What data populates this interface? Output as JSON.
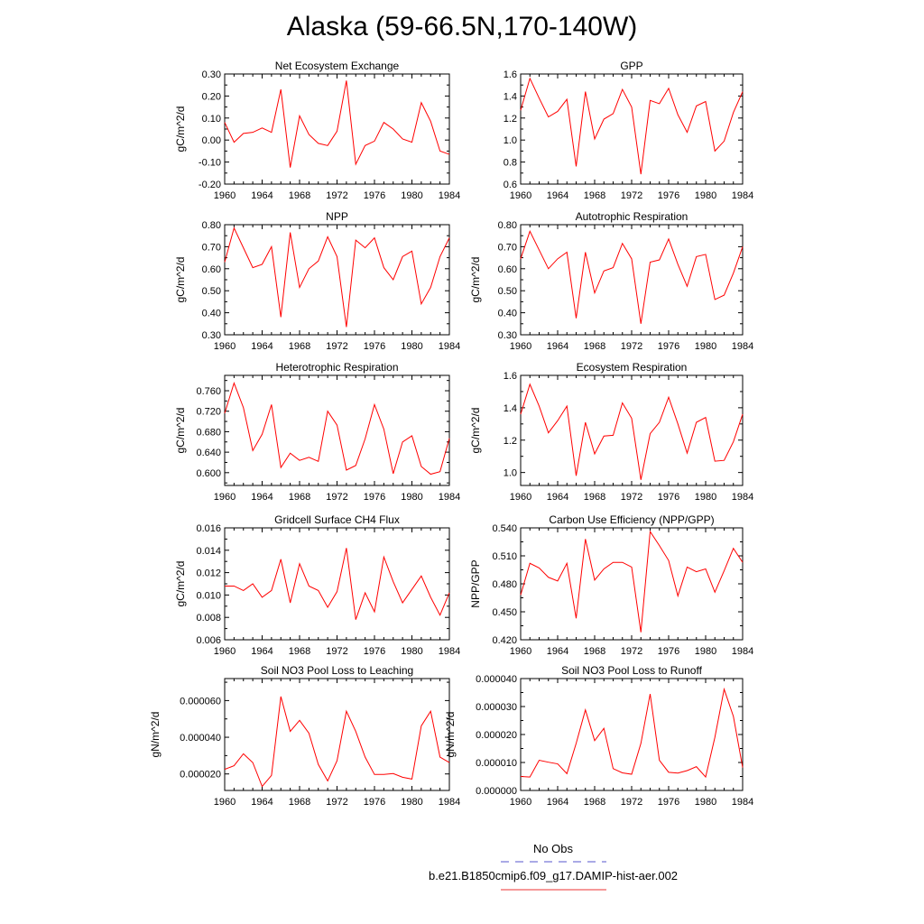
{
  "title": "Alaska (59-66.5N,170-140W)",
  "legend": [
    {
      "label": "No Obs",
      "color": "#5555cc",
      "dash": true
    },
    {
      "label": "b.e21.B1850cmip6.f09_g17.DAMIP-hist-aer.002",
      "color": "#ee3333",
      "dash": false
    }
  ],
  "chart_data": [
    {
      "type": "line",
      "title": "Net Ecosystem Exchange",
      "ylabel": "gC/m^2/d",
      "xlim": [
        1960,
        1984
      ],
      "ylim": [
        -0.2,
        0.3
      ],
      "xticks": [
        1960,
        1964,
        1968,
        1972,
        1976,
        1980,
        1984
      ],
      "yticks": [
        -0.2,
        -0.1,
        0.0,
        0.1,
        0.2,
        0.3
      ],
      "ytick_labels": [
        "-0.20",
        "-0.10",
        "0.00",
        "0.10",
        "0.20",
        "0.30"
      ],
      "series": [
        {
          "color": "#ff0000",
          "x": [
            1960,
            1961,
            1962,
            1963,
            1964,
            1965,
            1966,
            1967,
            1968,
            1969,
            1970,
            1971,
            1972,
            1973,
            1974,
            1975,
            1976,
            1977,
            1978,
            1979,
            1980,
            1981,
            1982,
            1983,
            1984
          ],
          "values": [
            0.08,
            -0.01,
            0.03,
            0.035,
            0.055,
            0.035,
            0.23,
            -0.125,
            0.11,
            0.025,
            -0.015,
            -0.025,
            0.04,
            0.27,
            -0.11,
            -0.025,
            -0.005,
            0.08,
            0.05,
            0.005,
            -0.01,
            0.17,
            0.085,
            -0.05,
            -0.065
          ]
        }
      ]
    },
    {
      "type": "line",
      "title": "GPP",
      "ylabel": "",
      "xlim": [
        1960,
        1984
      ],
      "ylim": [
        0.6,
        1.6
      ],
      "xticks": [
        1960,
        1964,
        1968,
        1972,
        1976,
        1980,
        1984
      ],
      "yticks": [
        0.6,
        0.8,
        1.0,
        1.2,
        1.4,
        1.6
      ],
      "ytick_labels": [
        "0.6",
        "0.8",
        "1.0",
        "1.2",
        "1.4",
        "1.6"
      ],
      "series": [
        {
          "color": "#ff0000",
          "x": [
            1960,
            1961,
            1962,
            1963,
            1964,
            1965,
            1966,
            1967,
            1968,
            1969,
            1970,
            1971,
            1972,
            1973,
            1974,
            1975,
            1976,
            1977,
            1978,
            1979,
            1980,
            1981,
            1982,
            1983,
            1984
          ],
          "values": [
            1.27,
            1.56,
            1.38,
            1.21,
            1.26,
            1.37,
            0.76,
            1.44,
            1.01,
            1.19,
            1.24,
            1.46,
            1.3,
            0.69,
            1.36,
            1.33,
            1.47,
            1.23,
            1.07,
            1.31,
            1.35,
            0.9,
            0.99,
            1.25,
            1.44
          ]
        }
      ]
    },
    {
      "type": "line",
      "title": "NPP",
      "ylabel": "gC/m^2/d",
      "xlim": [
        1960,
        1984
      ],
      "ylim": [
        0.3,
        0.8
      ],
      "xticks": [
        1960,
        1964,
        1968,
        1972,
        1976,
        1980,
        1984
      ],
      "yticks": [
        0.3,
        0.4,
        0.5,
        0.6,
        0.7,
        0.8
      ],
      "ytick_labels": [
        "0.30",
        "0.40",
        "0.50",
        "0.60",
        "0.70",
        "0.80"
      ],
      "series": [
        {
          "color": "#ff0000",
          "x": [
            1960,
            1961,
            1962,
            1963,
            1964,
            1965,
            1966,
            1967,
            1968,
            1969,
            1970,
            1971,
            1972,
            1973,
            1974,
            1975,
            1976,
            1977,
            1978,
            1979,
            1980,
            1981,
            1982,
            1983,
            1984
          ],
          "values": [
            0.63,
            0.785,
            0.695,
            0.605,
            0.62,
            0.7,
            0.38,
            0.765,
            0.515,
            0.6,
            0.635,
            0.745,
            0.655,
            0.335,
            0.73,
            0.695,
            0.74,
            0.605,
            0.55,
            0.655,
            0.68,
            0.44,
            0.515,
            0.655,
            0.74
          ]
        }
      ]
    },
    {
      "type": "line",
      "title": "Autotrophic Respiration",
      "ylabel": "gC/m^2/d",
      "xlim": [
        1960,
        1984
      ],
      "ylim": [
        0.3,
        0.8
      ],
      "xticks": [
        1960,
        1964,
        1968,
        1972,
        1976,
        1980,
        1984
      ],
      "yticks": [
        0.3,
        0.4,
        0.5,
        0.6,
        0.7,
        0.8
      ],
      "ytick_labels": [
        "0.30",
        "0.40",
        "0.50",
        "0.60",
        "0.70",
        "0.80"
      ],
      "series": [
        {
          "color": "#ff0000",
          "x": [
            1960,
            1961,
            1962,
            1963,
            1964,
            1965,
            1966,
            1967,
            1968,
            1969,
            1970,
            1971,
            1972,
            1973,
            1974,
            1975,
            1976,
            1977,
            1978,
            1979,
            1980,
            1981,
            1982,
            1983,
            1984
          ],
          "values": [
            0.645,
            0.77,
            0.685,
            0.6,
            0.645,
            0.675,
            0.375,
            0.675,
            0.49,
            0.59,
            0.605,
            0.715,
            0.645,
            0.35,
            0.63,
            0.64,
            0.735,
            0.62,
            0.52,
            0.655,
            0.665,
            0.46,
            0.48,
            0.58,
            0.7
          ]
        }
      ]
    },
    {
      "type": "line",
      "title": "Heterotrophic Respiration",
      "ylabel": "gC/m^2/d",
      "xlim": [
        1960,
        1984
      ],
      "ylim": [
        0.575,
        0.79
      ],
      "xticks": [
        1960,
        1964,
        1968,
        1972,
        1976,
        1980,
        1984
      ],
      "yticks": [
        0.6,
        0.64,
        0.68,
        0.72,
        0.76
      ],
      "ytick_labels": [
        "0.600",
        "0.640",
        "0.680",
        "0.720",
        "0.760"
      ],
      "series": [
        {
          "color": "#ff0000",
          "x": [
            1960,
            1961,
            1962,
            1963,
            1964,
            1965,
            1966,
            1967,
            1968,
            1969,
            1970,
            1971,
            1972,
            1973,
            1974,
            1975,
            1976,
            1977,
            1978,
            1979,
            1980,
            1981,
            1982,
            1983,
            1984
          ],
          "values": [
            0.716,
            0.775,
            0.727,
            0.643,
            0.675,
            0.733,
            0.61,
            0.638,
            0.624,
            0.63,
            0.622,
            0.72,
            0.693,
            0.605,
            0.614,
            0.666,
            0.733,
            0.685,
            0.598,
            0.66,
            0.672,
            0.612,
            0.597,
            0.602,
            0.667
          ]
        }
      ]
    },
    {
      "type": "line",
      "title": "Ecosystem Respiration",
      "ylabel": "gC/m^2/d",
      "xlim": [
        1960,
        1984
      ],
      "ylim": [
        0.92,
        1.6
      ],
      "xticks": [
        1960,
        1964,
        1968,
        1972,
        1976,
        1980,
        1984
      ],
      "yticks": [
        1.0,
        1.2,
        1.4,
        1.6
      ],
      "ytick_labels": [
        "1.0",
        "1.2",
        "1.4",
        "1.6"
      ],
      "series": [
        {
          "color": "#ff0000",
          "x": [
            1960,
            1961,
            1962,
            1963,
            1964,
            1965,
            1966,
            1967,
            1968,
            1969,
            1970,
            1971,
            1972,
            1973,
            1974,
            1975,
            1976,
            1977,
            1978,
            1979,
            1980,
            1981,
            1982,
            1983,
            1984
          ],
          "values": [
            1.36,
            1.545,
            1.41,
            1.245,
            1.32,
            1.41,
            0.98,
            1.31,
            1.115,
            1.225,
            1.23,
            1.43,
            1.335,
            0.955,
            1.24,
            1.31,
            1.465,
            1.3,
            1.12,
            1.31,
            1.34,
            1.07,
            1.075,
            1.19,
            1.36
          ]
        }
      ]
    },
    {
      "type": "line",
      "title": "Gridcell Surface CH4 Flux",
      "ylabel": "gC/m^2/d",
      "xlim": [
        1960,
        1984
      ],
      "ylim": [
        0.006,
        0.016
      ],
      "xticks": [
        1960,
        1964,
        1968,
        1972,
        1976,
        1980,
        1984
      ],
      "yticks": [
        0.006,
        0.008,
        0.01,
        0.012,
        0.014,
        0.016
      ],
      "ytick_labels": [
        "0.006",
        "0.008",
        "0.010",
        "0.012",
        "0.014",
        "0.016"
      ],
      "series": [
        {
          "color": "#ff0000",
          "x": [
            1960,
            1961,
            1962,
            1963,
            1964,
            1965,
            1966,
            1967,
            1968,
            1969,
            1970,
            1971,
            1972,
            1973,
            1974,
            1975,
            1976,
            1977,
            1978,
            1979,
            1980,
            1981,
            1982,
            1983,
            1984
          ],
          "values": [
            0.0108,
            0.0108,
            0.0104,
            0.011,
            0.0098,
            0.0104,
            0.0132,
            0.0093,
            0.0128,
            0.0108,
            0.0104,
            0.0089,
            0.0103,
            0.0142,
            0.0078,
            0.0102,
            0.0085,
            0.0134,
            0.0112,
            0.0093,
            0.0105,
            0.0117,
            0.0098,
            0.0082,
            0.0102
          ]
        }
      ]
    },
    {
      "type": "line",
      "title": "Carbon Use Efficiency (NPP/GPP)",
      "ylabel": "NPP/GPP",
      "xlim": [
        1960,
        1984
      ],
      "ylim": [
        0.42,
        0.54
      ],
      "xticks": [
        1960,
        1964,
        1968,
        1972,
        1976,
        1980,
        1984
      ],
      "yticks": [
        0.42,
        0.45,
        0.48,
        0.51,
        0.54
      ],
      "ytick_labels": [
        "0.420",
        "0.450",
        "0.480",
        "0.510",
        "0.540"
      ],
      "series": [
        {
          "color": "#ff0000",
          "x": [
            1960,
            1961,
            1962,
            1963,
            1964,
            1965,
            1966,
            1967,
            1968,
            1969,
            1970,
            1971,
            1972,
            1973,
            1974,
            1975,
            1976,
            1977,
            1978,
            1979,
            1980,
            1981,
            1982,
            1983,
            1984
          ],
          "values": [
            0.468,
            0.502,
            0.497,
            0.487,
            0.483,
            0.502,
            0.443,
            0.528,
            0.484,
            0.496,
            0.503,
            0.503,
            0.498,
            0.428,
            0.536,
            0.521,
            0.505,
            0.467,
            0.498,
            0.493,
            0.496,
            0.471,
            0.494,
            0.518,
            0.503
          ]
        }
      ]
    },
    {
      "type": "line",
      "title": "Soil NO3 Pool Loss to Leaching",
      "ylabel": "gN/m^2/d",
      "xlim": [
        1960,
        1984
      ],
      "ylim": [
        1.1e-05,
        7.2e-05
      ],
      "xticks": [
        1960,
        1964,
        1968,
        1972,
        1976,
        1980,
        1984
      ],
      "yticks": [
        2e-05,
        4e-05,
        6e-05
      ],
      "ytick_labels": [
        "0.000020",
        "0.000040",
        "0.000060"
      ],
      "series": [
        {
          "color": "#ff0000",
          "x": [
            1960,
            1961,
            1962,
            1963,
            1964,
            1965,
            1966,
            1967,
            1968,
            1969,
            1970,
            1971,
            1972,
            1973,
            1974,
            1975,
            1976,
            1977,
            1978,
            1979,
            1980,
            1981,
            1982,
            1983,
            1984
          ],
          "values": [
            2.25e-05,
            2.45e-05,
            3.1e-05,
            2.62e-05,
            1.32e-05,
            1.92e-05,
            6.22e-05,
            4.32e-05,
            4.92e-05,
            4.22e-05,
            2.52e-05,
            1.62e-05,
            2.72e-05,
            5.42e-05,
            4.32e-05,
            2.92e-05,
            1.97e-05,
            1.97e-05,
            2.02e-05,
            1.82e-05,
            1.72e-05,
            4.62e-05,
            5.42e-05,
            2.92e-05,
            2.62e-05
          ]
        }
      ]
    },
    {
      "type": "line",
      "title": "Soil NO3 Pool Loss to Runoff",
      "ylabel": "gN/m^2/d",
      "xlim": [
        1960,
        1984
      ],
      "ylim": [
        0.0,
        4e-05
      ],
      "xticks": [
        1960,
        1964,
        1968,
        1972,
        1976,
        1980,
        1984
      ],
      "yticks": [
        0.0,
        1e-05,
        2e-05,
        3e-05,
        4e-05
      ],
      "ytick_labels": [
        "0.000000",
        "0.000010",
        "0.000020",
        "0.000030",
        "0.000040"
      ],
      "series": [
        {
          "color": "#ff0000",
          "x": [
            1960,
            1961,
            1962,
            1963,
            1964,
            1965,
            1966,
            1967,
            1968,
            1969,
            1970,
            1971,
            1972,
            1973,
            1974,
            1975,
            1976,
            1977,
            1978,
            1979,
            1980,
            1981,
            1982,
            1983,
            1984
          ],
          "values": [
            5e-06,
            4.8e-06,
            1.08e-05,
            1.01e-05,
            9.5e-06,
            6e-06,
            1.68e-05,
            2.88e-05,
            1.78e-05,
            2.22e-05,
            7.8e-06,
            6.3e-06,
            5.8e-06,
            1.68e-05,
            3.45e-05,
            1.08e-05,
            6.5e-06,
            6.2e-06,
            7.1e-06,
            8.5e-06,
            4.8e-06,
            1.9e-05,
            3.62e-05,
            2.65e-05,
            8.2e-06
          ]
        }
      ]
    }
  ]
}
